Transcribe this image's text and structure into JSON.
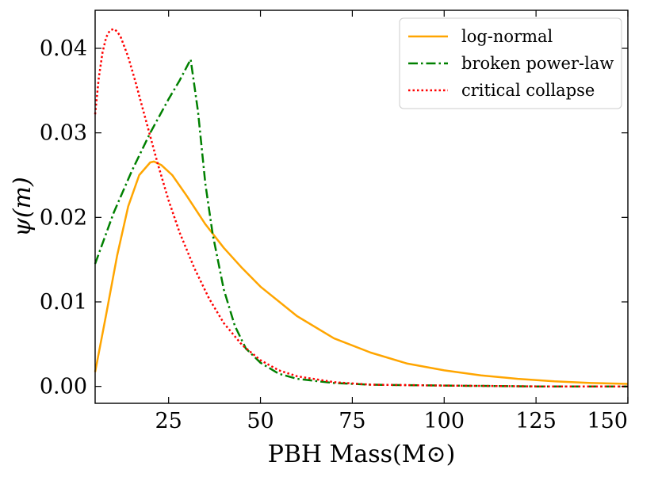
{
  "chart_data": {
    "type": "line",
    "title": "",
    "xlabel": "PBH Mass(M⊙)",
    "ylabel": "ψ(m)",
    "xlim": [
      5,
      150
    ],
    "ylim": [
      -0.002,
      0.0445
    ],
    "xticks": [
      25,
      50,
      75,
      100,
      125,
      150
    ],
    "xtick_labels": [
      "25",
      "50",
      "75",
      "100",
      "125",
      "150"
    ],
    "yticks": [
      0.0,
      0.01,
      0.02,
      0.03,
      0.04
    ],
    "ytick_labels": [
      "0.00",
      "0.01",
      "0.02",
      "0.03",
      "0.04"
    ],
    "grid": false,
    "legend_position": "top-right",
    "series": [
      {
        "name": "log-normal",
        "color": "#FFA500",
        "style": "solid",
        "x": [
          5,
          8,
          11,
          14,
          17,
          20,
          21,
          23,
          26,
          30,
          35,
          40,
          45,
          50,
          60,
          70,
          80,
          90,
          100,
          110,
          120,
          130,
          140,
          150
        ],
        "y": [
          0.0017,
          0.0085,
          0.0155,
          0.0213,
          0.025,
          0.0265,
          0.0266,
          0.0262,
          0.025,
          0.0225,
          0.0192,
          0.0164,
          0.014,
          0.0118,
          0.0083,
          0.0057,
          0.004,
          0.0027,
          0.0019,
          0.0013,
          0.0009,
          0.0006,
          0.0004,
          0.0003
        ]
      },
      {
        "name": "broken power-law",
        "color": "#008000",
        "style": "dash-dot",
        "x": [
          5,
          10,
          15,
          20,
          25,
          28,
          31,
          33,
          35,
          37,
          40,
          43,
          46,
          50,
          55,
          60,
          70,
          80,
          100,
          125,
          150
        ],
        "y": [
          0.0145,
          0.0205,
          0.0255,
          0.03,
          0.034,
          0.0362,
          0.0387,
          0.0325,
          0.024,
          0.018,
          0.0115,
          0.0072,
          0.0045,
          0.0028,
          0.0015,
          0.0009,
          0.0004,
          0.0002,
          0.0001,
          0.0,
          0.0
        ]
      },
      {
        "name": "critical collapse",
        "color": "#FF0000",
        "style": "dotted",
        "x": [
          5,
          6,
          7,
          8,
          9,
          10,
          11,
          12,
          14,
          16,
          18,
          20,
          22,
          25,
          28,
          32,
          36,
          40,
          45,
          50,
          55,
          60,
          70,
          80,
          100,
          125,
          150
        ],
        "y": [
          0.0322,
          0.0365,
          0.0395,
          0.0413,
          0.0421,
          0.0423,
          0.042,
          0.0413,
          0.039,
          0.036,
          0.0328,
          0.0296,
          0.0264,
          0.022,
          0.0182,
          0.014,
          0.0104,
          0.0075,
          0.0049,
          0.0031,
          0.0019,
          0.0012,
          0.0005,
          0.0002,
          0.0001,
          0.0,
          0.0
        ]
      }
    ]
  }
}
